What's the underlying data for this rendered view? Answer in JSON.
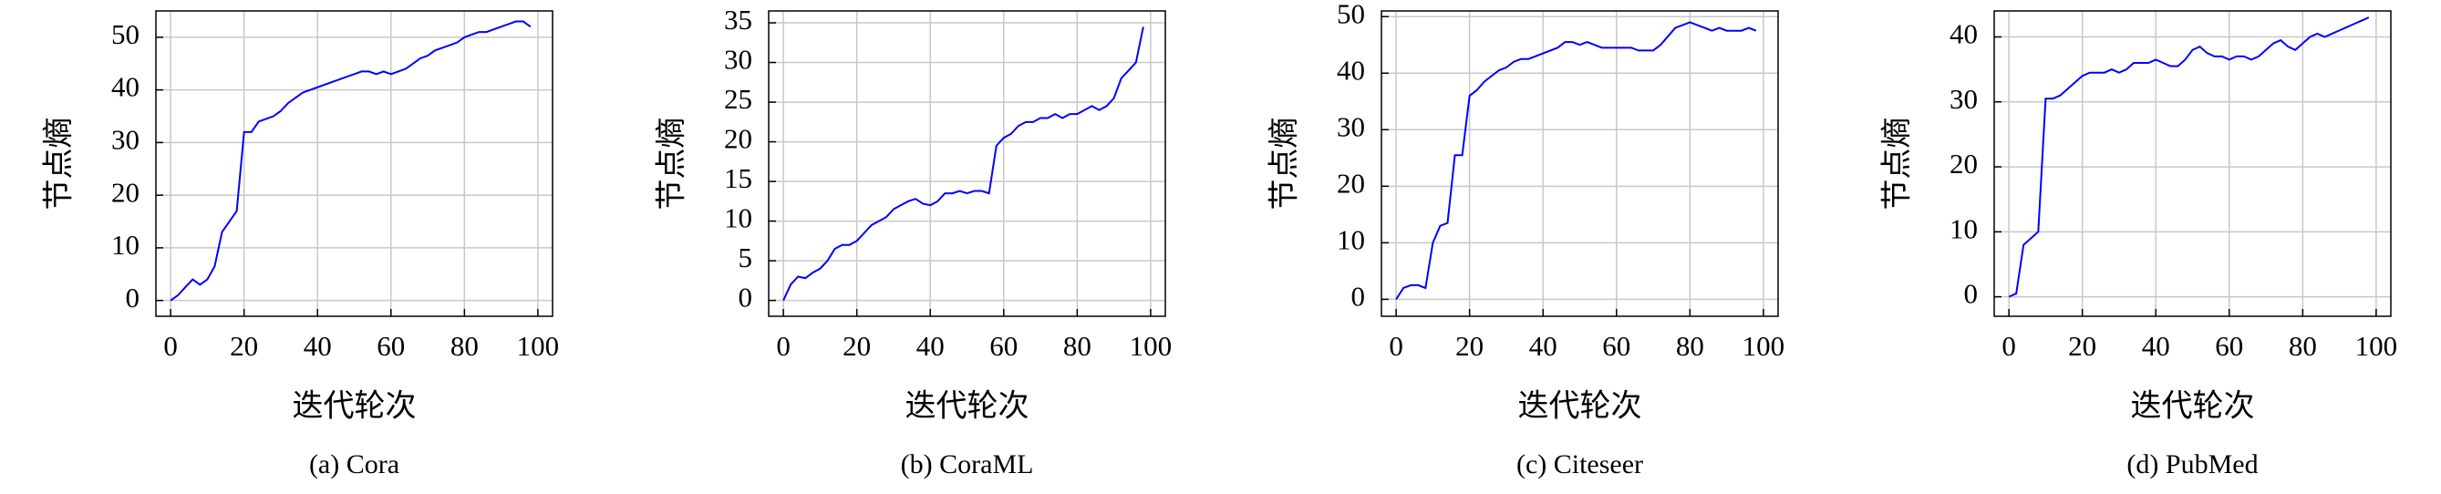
{
  "chart_data": [
    {
      "type": "line",
      "title": "(a) Cora",
      "x_label": "迭代轮次",
      "y_label": "节点熵",
      "x": [
        0,
        2,
        4,
        6,
        8,
        10,
        12,
        14,
        16,
        18,
        20,
        22,
        24,
        26,
        28,
        30,
        32,
        34,
        36,
        38,
        40,
        42,
        44,
        46,
        48,
        50,
        52,
        54,
        56,
        58,
        60,
        62,
        64,
        66,
        68,
        70,
        72,
        74,
        76,
        78,
        80,
        82,
        84,
        86,
        88,
        90,
        92,
        94,
        96,
        98
      ],
      "series": [
        {
          "color": "#0000ff",
          "values": [
            0,
            1,
            2.5,
            4,
            3,
            4,
            6.5,
            13,
            15,
            17,
            32,
            32,
            34,
            34.5,
            35,
            36,
            37.5,
            38.5,
            39.5,
            40,
            40.5,
            41,
            41.5,
            42,
            42.5,
            43,
            43.5,
            43.5,
            43,
            43.5,
            43,
            43.5,
            44,
            45,
            46,
            46.5,
            47.5,
            48,
            48.5,
            49,
            50,
            50.5,
            51,
            51,
            51.5,
            52,
            52.5,
            53,
            53,
            52
          ]
        }
      ],
      "xlim": [
        -4,
        104
      ],
      "ylim": [
        -3,
        55
      ],
      "xticks": [
        0,
        20,
        40,
        60,
        80,
        100
      ],
      "yticks": [
        0,
        10,
        20,
        30,
        40,
        50
      ],
      "grid": true
    },
    {
      "type": "line",
      "title": "(b) CoraML",
      "x_label": "迭代轮次",
      "y_label": "节点熵",
      "x": [
        0,
        2,
        4,
        6,
        8,
        10,
        12,
        14,
        16,
        18,
        20,
        22,
        24,
        26,
        28,
        30,
        32,
        34,
        36,
        38,
        40,
        42,
        44,
        46,
        48,
        50,
        52,
        54,
        56,
        58,
        60,
        62,
        64,
        66,
        68,
        70,
        72,
        74,
        76,
        78,
        80,
        82,
        84,
        86,
        88,
        90,
        92,
        94,
        96,
        98
      ],
      "series": [
        {
          "color": "#0000ff",
          "values": [
            0,
            2,
            3,
            2.8,
            3.5,
            4,
            5,
            6.5,
            7,
            7,
            7.5,
            8.5,
            9.5,
            10,
            10.5,
            11.5,
            12,
            12.5,
            12.8,
            12.2,
            12,
            12.5,
            13.5,
            13.5,
            13.8,
            13.5,
            13.8,
            13.8,
            13.5,
            19.5,
            20.5,
            21,
            22,
            22.5,
            22.5,
            23,
            23,
            23.5,
            23,
            23.5,
            23.5,
            24,
            24.5,
            24,
            24.5,
            25.5,
            28,
            29,
            30,
            34.5
          ]
        }
      ],
      "xlim": [
        -4,
        104
      ],
      "ylim": [
        -2,
        36.5
      ],
      "xticks": [
        0,
        20,
        40,
        60,
        80,
        100
      ],
      "yticks": [
        0,
        5,
        10,
        15,
        20,
        25,
        30,
        35
      ],
      "grid": true
    },
    {
      "type": "line",
      "title": "(c) Citeseer",
      "x_label": "迭代轮次",
      "y_label": "节点熵",
      "x": [
        0,
        2,
        4,
        6,
        8,
        10,
        12,
        14,
        16,
        18,
        20,
        22,
        24,
        26,
        28,
        30,
        32,
        34,
        36,
        38,
        40,
        42,
        44,
        46,
        48,
        50,
        52,
        54,
        56,
        58,
        60,
        62,
        64,
        66,
        68,
        70,
        72,
        74,
        76,
        78,
        80,
        82,
        84,
        86,
        88,
        90,
        92,
        94,
        96,
        98
      ],
      "series": [
        {
          "color": "#0000ff",
          "values": [
            0,
            2,
            2.5,
            2.5,
            2,
            10,
            13,
            13.5,
            25.5,
            25.5,
            36,
            37,
            38.5,
            39.5,
            40.5,
            41,
            42,
            42.5,
            42.5,
            43,
            43.5,
            44,
            44.5,
            45.5,
            45.5,
            45,
            45.5,
            45,
            44.5,
            44.5,
            44.5,
            44.5,
            44.5,
            44,
            44,
            44,
            45,
            46.5,
            48,
            48.5,
            49,
            48.5,
            48,
            47.5,
            48,
            47.5,
            47.5,
            47.5,
            48,
            47.5
          ]
        }
      ],
      "xlim": [
        -4,
        104
      ],
      "ylim": [
        -3,
        51
      ],
      "xticks": [
        0,
        20,
        40,
        60,
        80,
        100
      ],
      "yticks": [
        0,
        10,
        20,
        30,
        40,
        50
      ],
      "grid": true
    },
    {
      "type": "line",
      "title": "(d) PubMed",
      "x_label": "迭代轮次",
      "y_label": "节点熵",
      "x": [
        0,
        2,
        4,
        6,
        8,
        10,
        12,
        14,
        16,
        18,
        20,
        22,
        24,
        26,
        28,
        30,
        32,
        34,
        36,
        38,
        40,
        42,
        44,
        46,
        48,
        50,
        52,
        54,
        56,
        58,
        60,
        62,
        64,
        66,
        68,
        70,
        72,
        74,
        76,
        78,
        80,
        82,
        84,
        86,
        88,
        90,
        92,
        94,
        96,
        98
      ],
      "series": [
        {
          "color": "#0000ff",
          "values": [
            0,
            0.5,
            8,
            9,
            10,
            30.5,
            30.5,
            31,
            32,
            33,
            34,
            34.5,
            34.5,
            34.5,
            35,
            34.5,
            35,
            36,
            36,
            36,
            36.5,
            36,
            35.5,
            35.5,
            36.5,
            38,
            38.5,
            37.5,
            37,
            37,
            36.5,
            37,
            37,
            36.5,
            37,
            38,
            39,
            39.5,
            38.5,
            38,
            39,
            40,
            40.5,
            40,
            40.5,
            41,
            41.5,
            42,
            42.5,
            43
          ]
        }
      ],
      "xlim": [
        -4,
        104
      ],
      "ylim": [
        -3,
        44
      ],
      "xticks": [
        0,
        20,
        40,
        60,
        80,
        100
      ],
      "yticks": [
        0,
        10,
        20,
        30,
        40
      ],
      "grid": true
    }
  ]
}
